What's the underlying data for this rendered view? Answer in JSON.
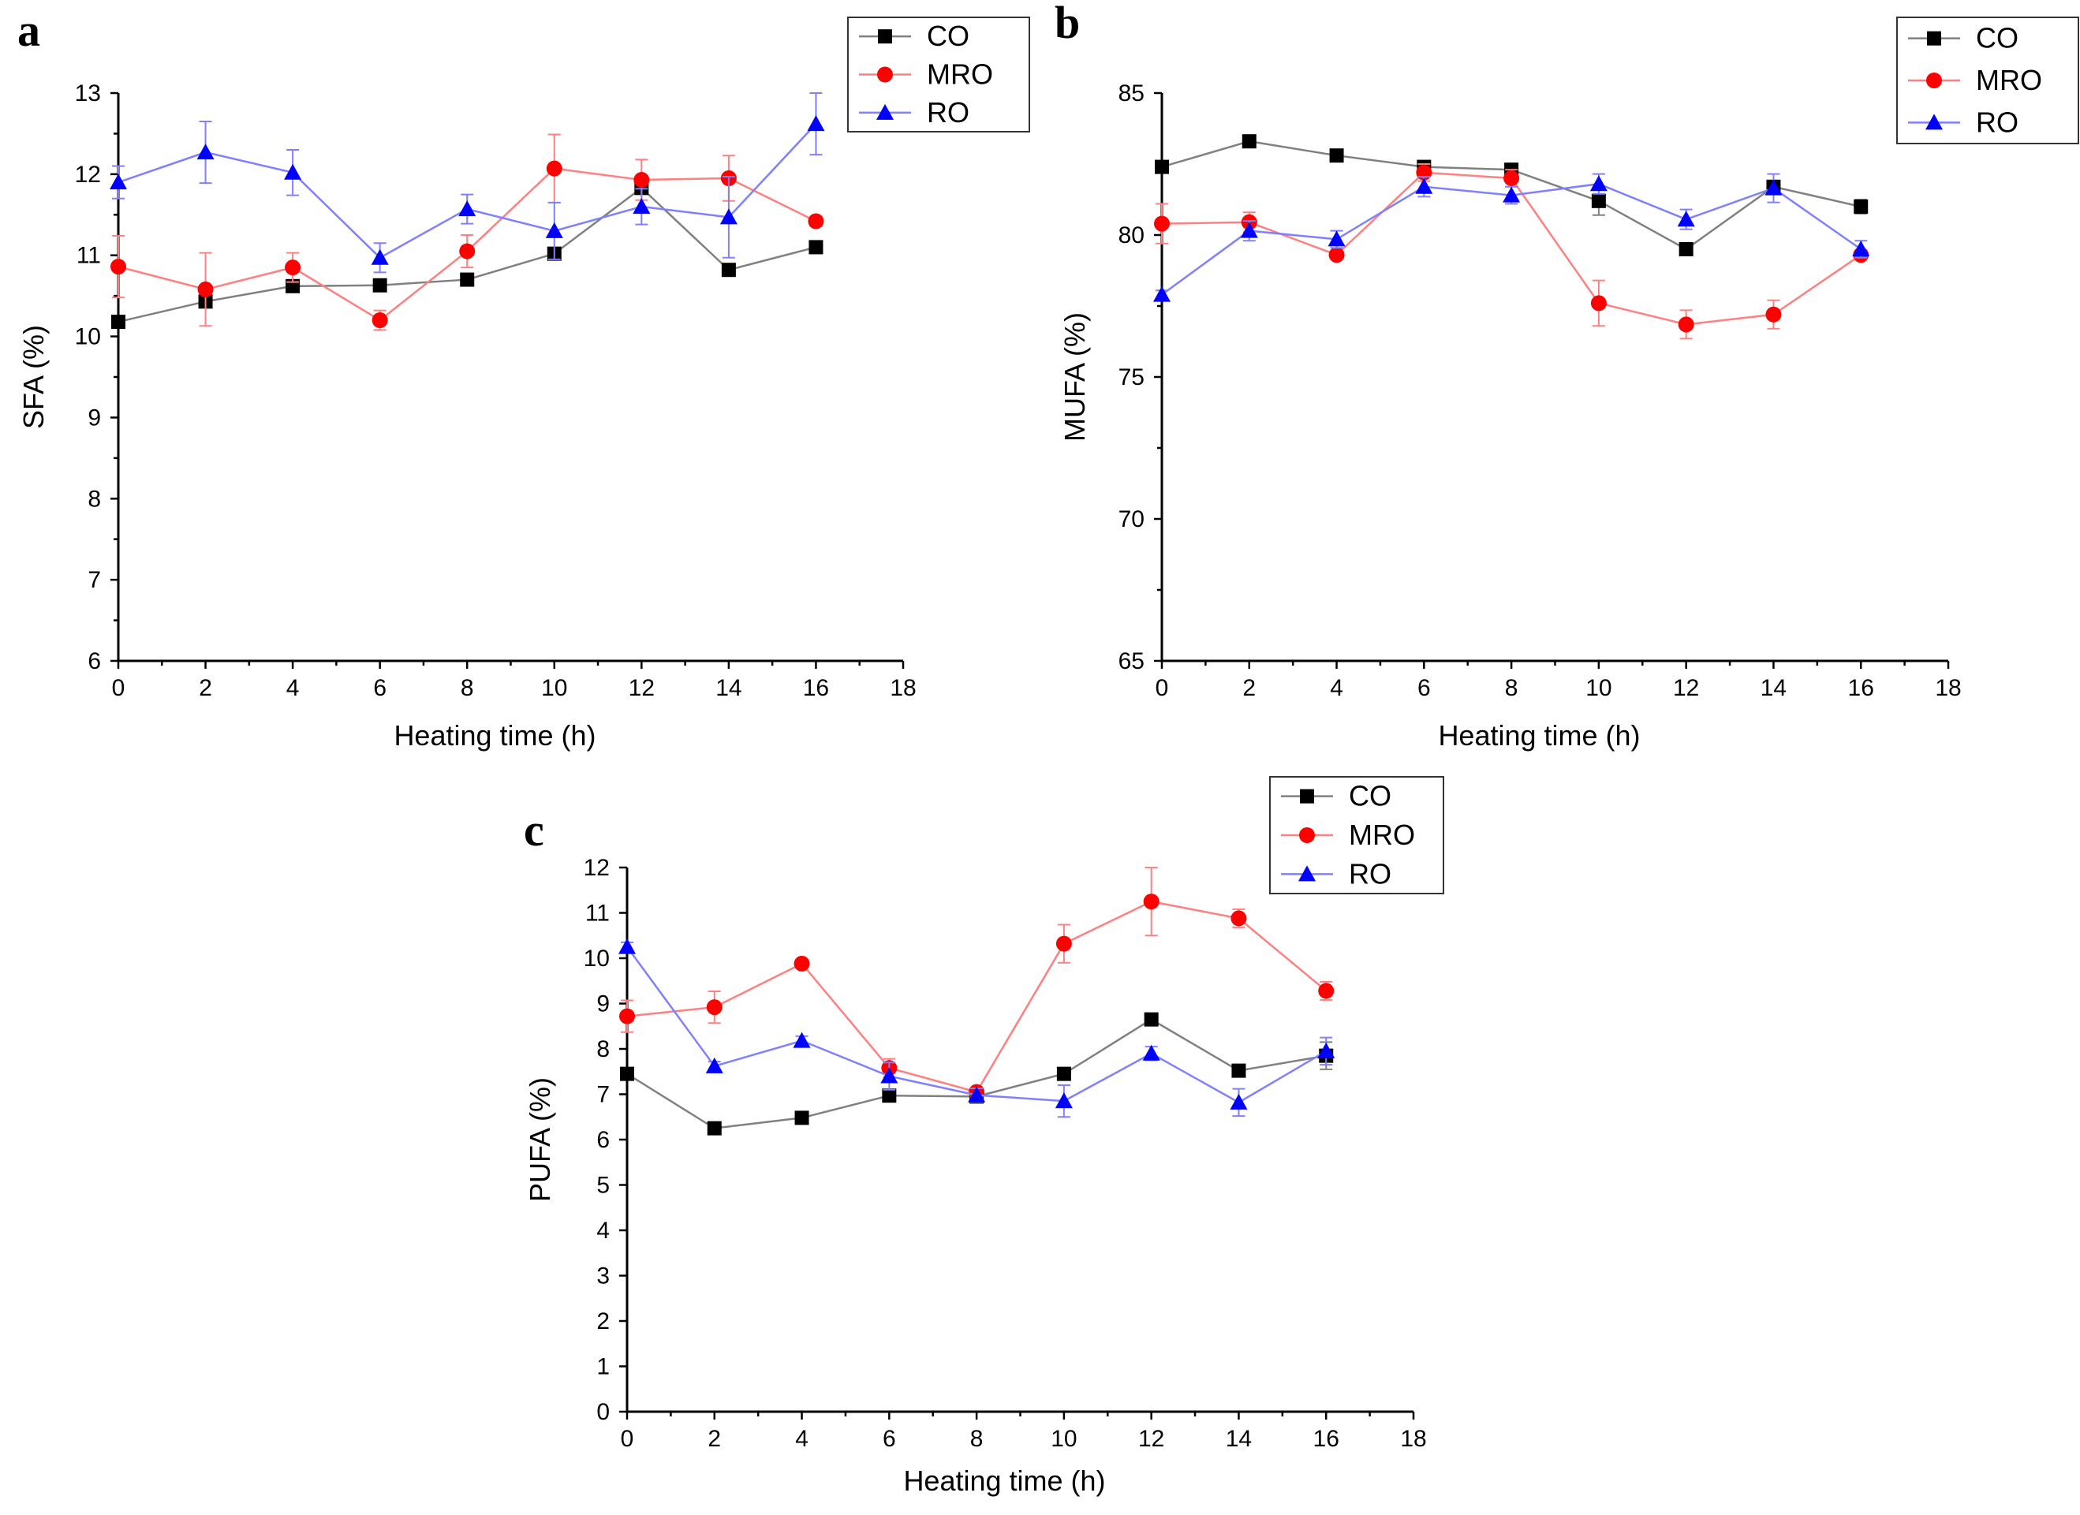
{
  "chart_data": [
    {
      "panel": "a",
      "type": "line",
      "xlabel": "Heating time (h)",
      "ylabel": "SFA (%)",
      "xlim": [
        0,
        18
      ],
      "ylim": [
        6,
        13
      ],
      "xticks": [
        0,
        2,
        4,
        6,
        8,
        10,
        12,
        14,
        16,
        18
      ],
      "yticks": [
        6,
        7,
        8,
        9,
        10,
        11,
        12,
        13
      ],
      "x": [
        0,
        2,
        4,
        6,
        8,
        10,
        12,
        14,
        16
      ],
      "legend_position": "top-right",
      "series": [
        {
          "name": "CO",
          "color": "#000000",
          "line_color": "#808080",
          "marker": "square",
          "values": [
            10.18,
            10.43,
            10.62,
            10.63,
            10.7,
            11.02,
            11.83,
            10.82,
            11.1
          ],
          "errors": [
            0.05,
            0.05,
            0.05,
            0.05,
            0.05,
            0.05,
            0.05,
            0.05,
            0.05
          ]
        },
        {
          "name": "MRO",
          "color": "#ff0000",
          "line_color": "#ff8080",
          "marker": "circle",
          "values": [
            10.86,
            10.58,
            10.85,
            10.2,
            11.05,
            12.07,
            11.93,
            11.95,
            11.42
          ],
          "errors": [
            0.38,
            0.45,
            0.18,
            0.12,
            0.2,
            0.42,
            0.25,
            0.28,
            0.06
          ]
        },
        {
          "name": "RO",
          "color": "#0000ff",
          "line_color": "#8080ff",
          "marker": "triangle",
          "values": [
            11.9,
            12.27,
            12.02,
            10.97,
            11.57,
            11.3,
            11.6,
            11.47,
            12.62
          ],
          "errors": [
            0.2,
            0.38,
            0.28,
            0.18,
            0.18,
            0.35,
            0.22,
            0.5,
            0.38
          ]
        }
      ]
    },
    {
      "panel": "b",
      "type": "line",
      "xlabel": "Heating time (h)",
      "ylabel": "MUFA (%)",
      "xlim": [
        0,
        18
      ],
      "ylim": [
        65,
        85
      ],
      "xticks": [
        0,
        2,
        4,
        6,
        8,
        10,
        12,
        14,
        16,
        18
      ],
      "yticks": [
        65,
        70,
        75,
        80,
        85
      ],
      "x": [
        0,
        2,
        4,
        6,
        8,
        10,
        12,
        14,
        16
      ],
      "legend_position": "top-right",
      "series": [
        {
          "name": "CO",
          "color": "#000000",
          "line_color": "#808080",
          "marker": "square",
          "values": [
            82.4,
            83.3,
            82.8,
            82.4,
            82.3,
            81.2,
            79.5,
            81.7,
            81.0
          ],
          "errors": [
            0.15,
            0.15,
            0.15,
            0.15,
            0.15,
            0.5,
            0.15,
            0.15,
            0.25
          ]
        },
        {
          "name": "MRO",
          "color": "#ff0000",
          "line_color": "#ff8080",
          "marker": "circle",
          "values": [
            80.4,
            80.45,
            79.3,
            82.2,
            82.0,
            77.6,
            76.85,
            77.2,
            79.3
          ],
          "errors": [
            0.7,
            0.35,
            0.15,
            0.3,
            0.3,
            0.8,
            0.5,
            0.5,
            0.15
          ]
        },
        {
          "name": "RO",
          "color": "#0000ff",
          "line_color": "#8080ff",
          "marker": "triangle",
          "values": [
            77.9,
            80.15,
            79.85,
            81.7,
            81.4,
            81.8,
            80.55,
            81.65,
            79.5
          ],
          "errors": [
            0.15,
            0.35,
            0.3,
            0.35,
            0.3,
            0.35,
            0.35,
            0.5,
            0.3
          ]
        }
      ]
    },
    {
      "panel": "c",
      "type": "line",
      "xlabel": "Heating time (h)",
      "ylabel": "PUFA (%)",
      "xlim": [
        0,
        18
      ],
      "ylim": [
        0,
        12
      ],
      "xticks": [
        0,
        2,
        4,
        6,
        8,
        10,
        12,
        14,
        16,
        18
      ],
      "yticks": [
        0,
        1,
        2,
        3,
        4,
        5,
        6,
        7,
        8,
        9,
        10,
        11,
        12
      ],
      "x": [
        0,
        2,
        4,
        6,
        8,
        10,
        12,
        14,
        16
      ],
      "legend_position": "top-right",
      "series": [
        {
          "name": "CO",
          "color": "#000000",
          "line_color": "#808080",
          "marker": "square",
          "values": [
            7.45,
            6.25,
            6.48,
            6.97,
            6.95,
            7.45,
            8.65,
            7.52,
            7.85
          ],
          "errors": [
            0.05,
            0.05,
            0.05,
            0.05,
            0.05,
            0.05,
            0.05,
            0.05,
            0.3
          ]
        },
        {
          "name": "MRO",
          "color": "#ff0000",
          "line_color": "#ff8080",
          "marker": "circle",
          "values": [
            8.72,
            8.92,
            9.88,
            7.58,
            7.05,
            10.32,
            11.25,
            10.88,
            9.28
          ],
          "errors": [
            0.35,
            0.35,
            0.05,
            0.2,
            0.1,
            0.42,
            0.75,
            0.2,
            0.2
          ]
        },
        {
          "name": "RO",
          "color": "#0000ff",
          "line_color": "#8080ff",
          "marker": "triangle",
          "values": [
            10.25,
            7.62,
            8.18,
            7.4,
            6.98,
            6.85,
            7.9,
            6.82,
            7.95
          ],
          "errors": [
            0.1,
            0.1,
            0.1,
            0.3,
            0.15,
            0.35,
            0.15,
            0.3,
            0.3
          ]
        }
      ]
    }
  ]
}
